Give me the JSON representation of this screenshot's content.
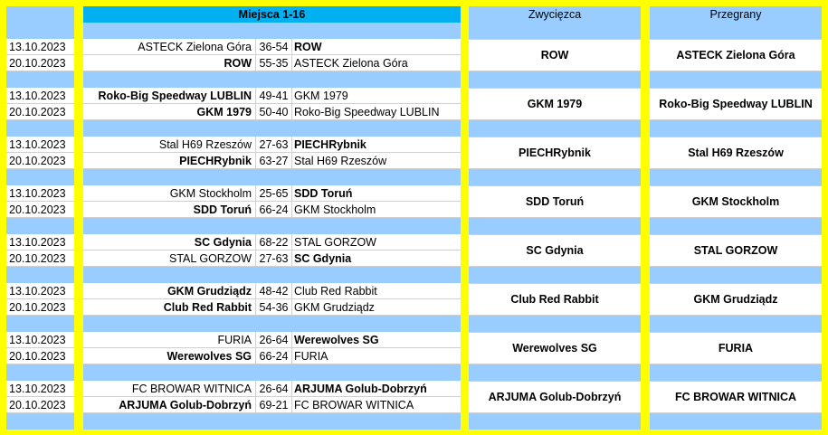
{
  "headers": {
    "main": "Miejsca 1-16",
    "winner": "Zwycięzca",
    "loser": "Przegrany"
  },
  "colors": {
    "background": "#ffff00",
    "band": "#99ccff",
    "header_main": "#00b0f0",
    "cell": "#ffffff"
  },
  "pairs": [
    {
      "winner": "ROW",
      "loser": "ASTECK Zielona Góra",
      "matches": [
        {
          "date": "13.10.2023",
          "home": "ASTECK Zielona Góra",
          "score": "36-54",
          "away": "ROW",
          "home_bold": false,
          "away_bold": true
        },
        {
          "date": "20.10.2023",
          "home": "ROW",
          "score": "55-35",
          "away": "ASTECK Zielona Góra",
          "home_bold": true,
          "away_bold": false
        }
      ]
    },
    {
      "winner": "GKM 1979",
      "loser": "Roko-Big Speedway LUBLIN",
      "matches": [
        {
          "date": "13.10.2023",
          "home": "Roko-Big Speedway LUBLIN",
          "score": "49-41",
          "away": "GKM 1979",
          "home_bold": true,
          "away_bold": false
        },
        {
          "date": "20.10.2023",
          "home": "GKM 1979",
          "score": "50-40",
          "away": "Roko-Big Speedway LUBLIN",
          "home_bold": true,
          "away_bold": false
        }
      ]
    },
    {
      "winner": "PIECHRybnik",
      "loser": "Stal H69 Rzeszów",
      "matches": [
        {
          "date": "13.10.2023",
          "home": "Stal H69 Rzeszów",
          "score": "27-63",
          "away": "PIECHRybnik",
          "home_bold": false,
          "away_bold": true
        },
        {
          "date": "20.10.2023",
          "home": "PIECHRybnik",
          "score": "63-27",
          "away": "Stal H69 Rzeszów",
          "home_bold": true,
          "away_bold": false
        }
      ]
    },
    {
      "winner": "SDD Toruń",
      "loser": "GKM Stockholm",
      "matches": [
        {
          "date": "13.10.2023",
          "home": "GKM Stockholm",
          "score": "25-65",
          "away": "SDD Toruń",
          "home_bold": false,
          "away_bold": true
        },
        {
          "date": "20.10.2023",
          "home": "SDD Toruń",
          "score": "66-24",
          "away": "GKM Stockholm",
          "home_bold": true,
          "away_bold": false
        }
      ]
    },
    {
      "winner": "SC Gdynia",
      "loser": "STAL GORZOW",
      "matches": [
        {
          "date": "13.10.2023",
          "home": "SC Gdynia",
          "score": "68-22",
          "away": "STAL GORZOW",
          "home_bold": true,
          "away_bold": false
        },
        {
          "date": "20.10.2023",
          "home": "STAL GORZOW",
          "score": "27-63",
          "away": "SC Gdynia",
          "home_bold": false,
          "away_bold": true
        }
      ]
    },
    {
      "winner": "Club Red Rabbit",
      "loser": "GKM Grudziądz",
      "matches": [
        {
          "date": "13.10.2023",
          "home": "GKM Grudziądz",
          "score": "48-42",
          "away": "Club Red Rabbit",
          "home_bold": true,
          "away_bold": false
        },
        {
          "date": "20.10.2023",
          "home": "Club Red Rabbit",
          "score": "54-36",
          "away": "GKM Grudziądz",
          "home_bold": true,
          "away_bold": false
        }
      ]
    },
    {
      "winner": "Werewolves SG",
      "loser": "FURIA",
      "matches": [
        {
          "date": "13.10.2023",
          "home": "FURIA",
          "score": "26-64",
          "away": "Werewolves SG",
          "home_bold": false,
          "away_bold": true
        },
        {
          "date": "20.10.2023",
          "home": "Werewolves SG",
          "score": "66-24",
          "away": "FURIA",
          "home_bold": true,
          "away_bold": false
        }
      ]
    },
    {
      "winner": "ARJUMA Golub-Dobrzyń",
      "loser": "FC BROWAR WITNICA",
      "matches": [
        {
          "date": "13.10.2023",
          "home": "FC BROWAR WITNICA",
          "score": "26-64",
          "away": "ARJUMA Golub-Dobrzyń",
          "home_bold": false,
          "away_bold": true
        },
        {
          "date": "20.10.2023",
          "home": "ARJUMA Golub-Dobrzyń",
          "score": "69-21",
          "away": "FC BROWAR WITNICA",
          "home_bold": true,
          "away_bold": false
        }
      ]
    }
  ]
}
